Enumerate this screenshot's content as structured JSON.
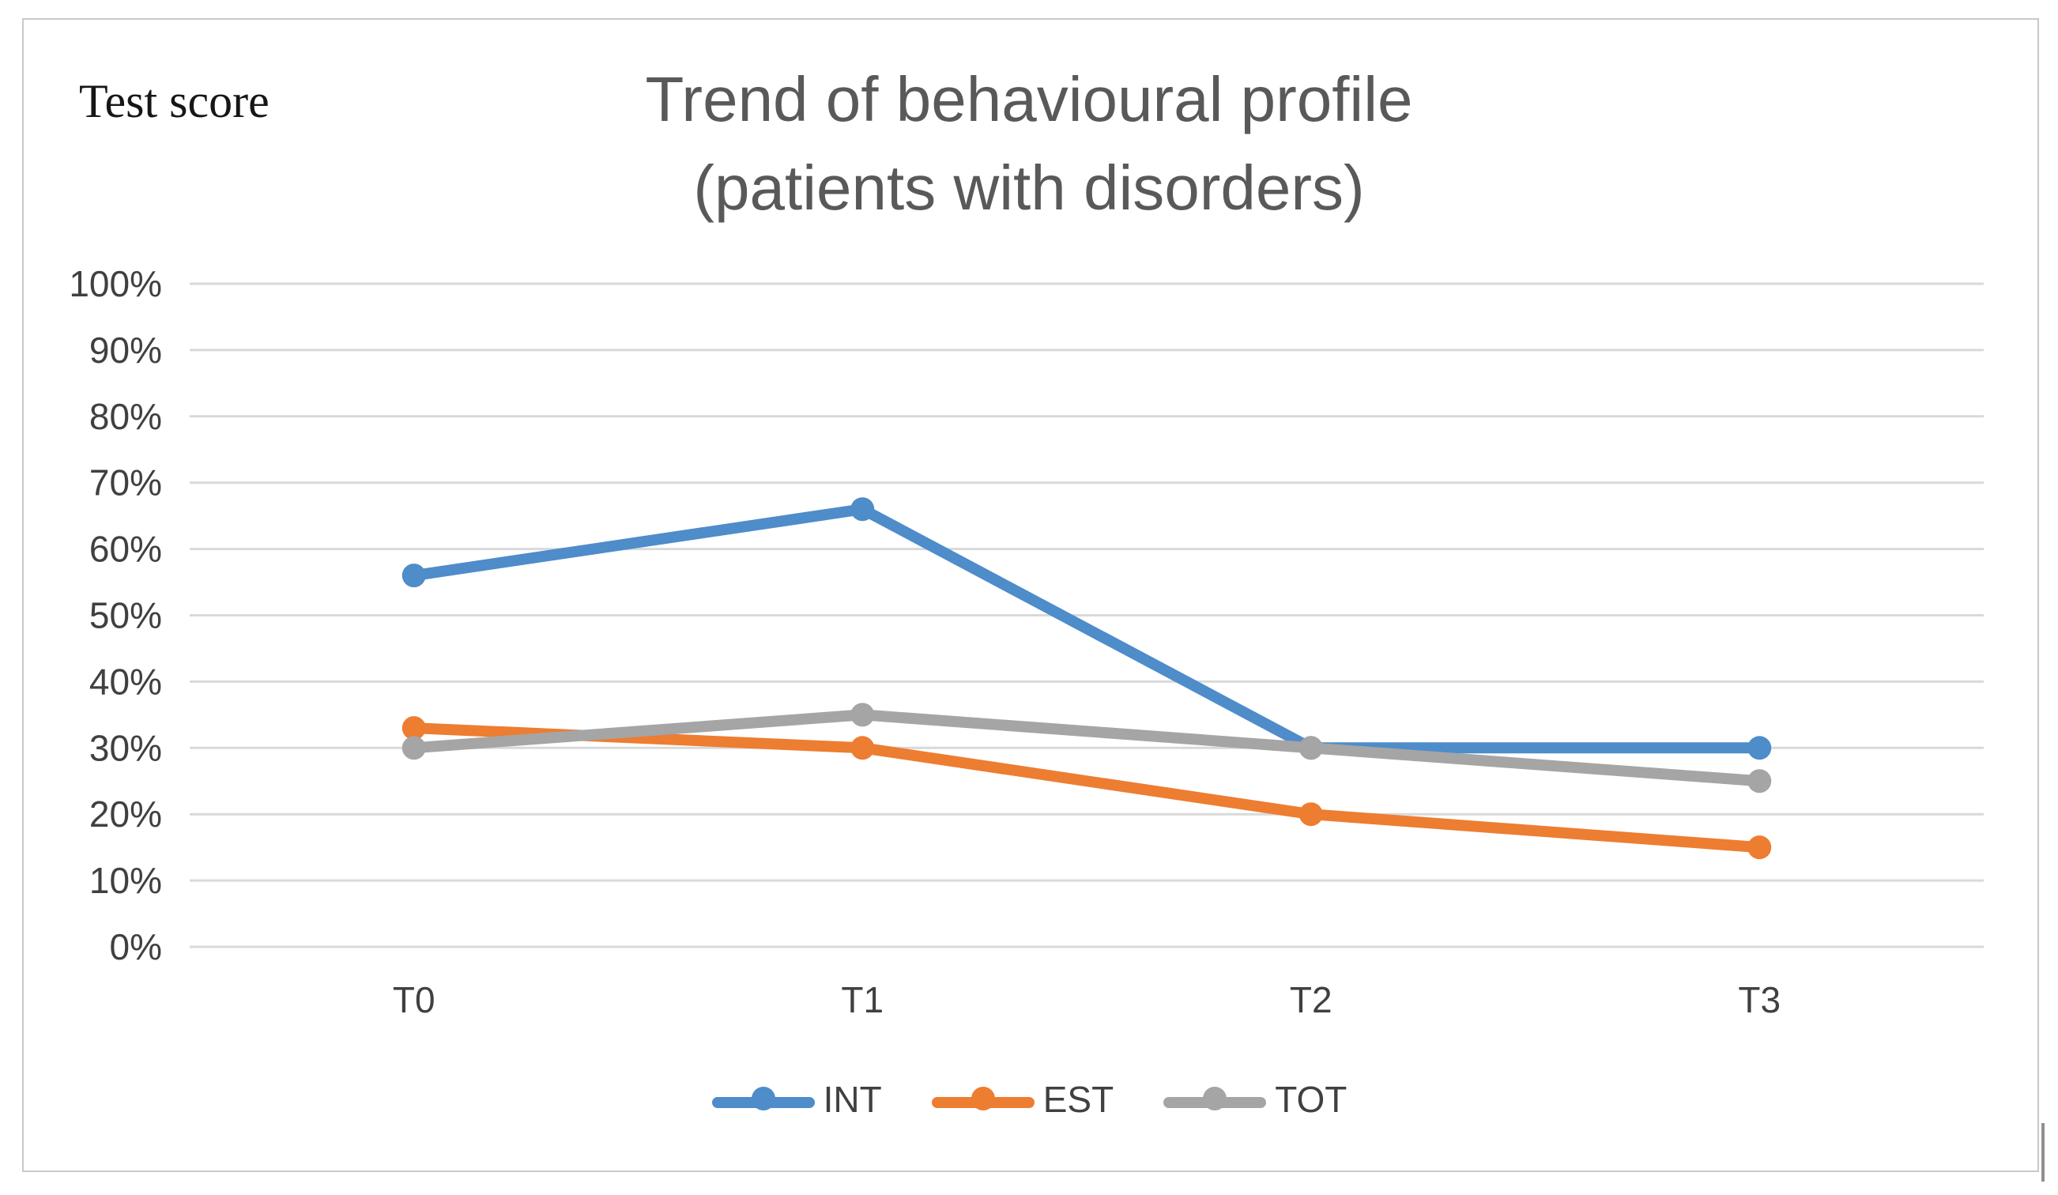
{
  "chart_data": {
    "type": "line",
    "title": "Trend of behavioural profile",
    "subtitle": "(patients with disorders)",
    "ylabel": "Test score",
    "xlabel": "",
    "categories": [
      "T0",
      "T1",
      "T2",
      "T3"
    ],
    "series": [
      {
        "name": "INT",
        "color": "#4E8CCA",
        "values": [
          56,
          66,
          30,
          30
        ]
      },
      {
        "name": "EST",
        "color": "#ED7D31",
        "values": [
          33,
          30,
          20,
          15
        ]
      },
      {
        "name": "TOT",
        "color": "#A5A5A5",
        "values": [
          30,
          35,
          30,
          25
        ]
      }
    ],
    "ylim": [
      0,
      100
    ],
    "y_ticks": [
      0,
      10,
      20,
      30,
      40,
      50,
      60,
      70,
      80,
      90,
      100
    ],
    "y_tick_labels": [
      "0%",
      "10%",
      "20%",
      "30%",
      "40%",
      "50%",
      "60%",
      "70%",
      "80%",
      "90%",
      "100%"
    ],
    "grid": "horizontal",
    "legend_position": "bottom",
    "marker": "circle"
  },
  "colors": {
    "title_text": "#595959",
    "axis_text": "#404040",
    "gridline": "#D9D9D9",
    "figure_border": "#C9C9C9",
    "background": "#FFFFFF",
    "scrollbar_fragment": "#8F8F8F"
  }
}
